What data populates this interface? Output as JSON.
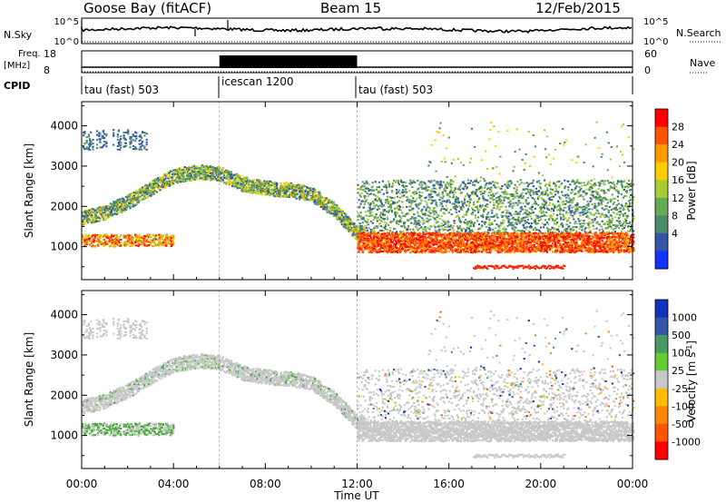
{
  "header": {
    "station": "Goose Bay (fitACF)",
    "beam": "Beam 15",
    "date": "12/Feb/2015"
  },
  "strips": {
    "nsky": {
      "label": "N.Sky",
      "ticks": [
        "10^5",
        "10^0"
      ]
    },
    "nsearch": {
      "label": "N.Search",
      "ticks": [
        "10^5",
        "10^0"
      ]
    },
    "freq": {
      "label_top": "Freq.",
      "label_unit": "[MHz]",
      "ticks": [
        "18",
        "8"
      ]
    },
    "nave": {
      "label": "Nave",
      "ticks": [
        "60",
        "0"
      ]
    },
    "cpid": {
      "label": "CPID",
      "segments": [
        {
          "label": "tau (fast) 503",
          "start_h": 0,
          "end_h": 6
        },
        {
          "label": "icescan 1200",
          "start_h": 6,
          "end_h": 12
        },
        {
          "label": "tau (fast) 503",
          "start_h": 12,
          "end_h": 24
        }
      ]
    }
  },
  "chart_data": [
    {
      "type": "heatmap",
      "name": "power",
      "ylabel": "Slant Range [km]",
      "xlabel": "",
      "x_ticks": [
        "00:00",
        "04:00",
        "08:00",
        "12:00",
        "16:00",
        "20:00",
        "00:00"
      ],
      "x_range_hours": [
        0,
        24
      ],
      "ylim": [
        180,
        4600
      ],
      "y_ticks": [
        1000,
        2000,
        3000,
        4000
      ],
      "colorbar": {
        "label": "Power [dB]",
        "ticks": [
          "28",
          "24",
          "20",
          "16",
          "12",
          "8",
          "4"
        ],
        "colors": [
          "#ff0000",
          "#ff5500",
          "#ff9900",
          "#ffcc00",
          "#aacc33",
          "#66aa55",
          "#4a8a66",
          "#3355aa",
          "#1133ff"
        ]
      },
      "features": [
        {
          "desc": "arc",
          "t": [
            0,
            1,
            2,
            3,
            4,
            5,
            6,
            7,
            8,
            9,
            10,
            11,
            12
          ],
          "r": [
            1700,
            1850,
            2100,
            2450,
            2750,
            2850,
            2800,
            2550,
            2450,
            2400,
            2300,
            1900,
            1300
          ]
        },
        {
          "desc": "main_band",
          "t": [
            12,
            24
          ],
          "r": [
            850,
            1350
          ],
          "power": 24
        }
      ]
    },
    {
      "type": "heatmap",
      "name": "velocity",
      "ylabel": "Slant Range [km]",
      "xlabel": "Time UT",
      "x_ticks": [
        "00:00",
        "04:00",
        "08:00",
        "12:00",
        "16:00",
        "20:00",
        "00:00"
      ],
      "x_range_hours": [
        0,
        24
      ],
      "ylim": [
        180,
        4600
      ],
      "y_ticks": [
        1000,
        2000,
        3000,
        4000
      ],
      "colorbar": {
        "label": "Velocity [m s-1]",
        "ticks": [
          "1000",
          "500",
          "100",
          "25",
          "-25",
          "-100",
          "-500",
          "-1000"
        ],
        "colors": [
          "#1133bb",
          "#3355aa",
          "#4a9a66",
          "#66cc33",
          "#c8c8c8",
          "#ffbb00",
          "#ff8800",
          "#ff5500",
          "#ff0000"
        ]
      }
    }
  ],
  "colors": {
    "ground_scatter": "#c8c8c8",
    "axis": "#000000",
    "background": "#ffffff"
  }
}
